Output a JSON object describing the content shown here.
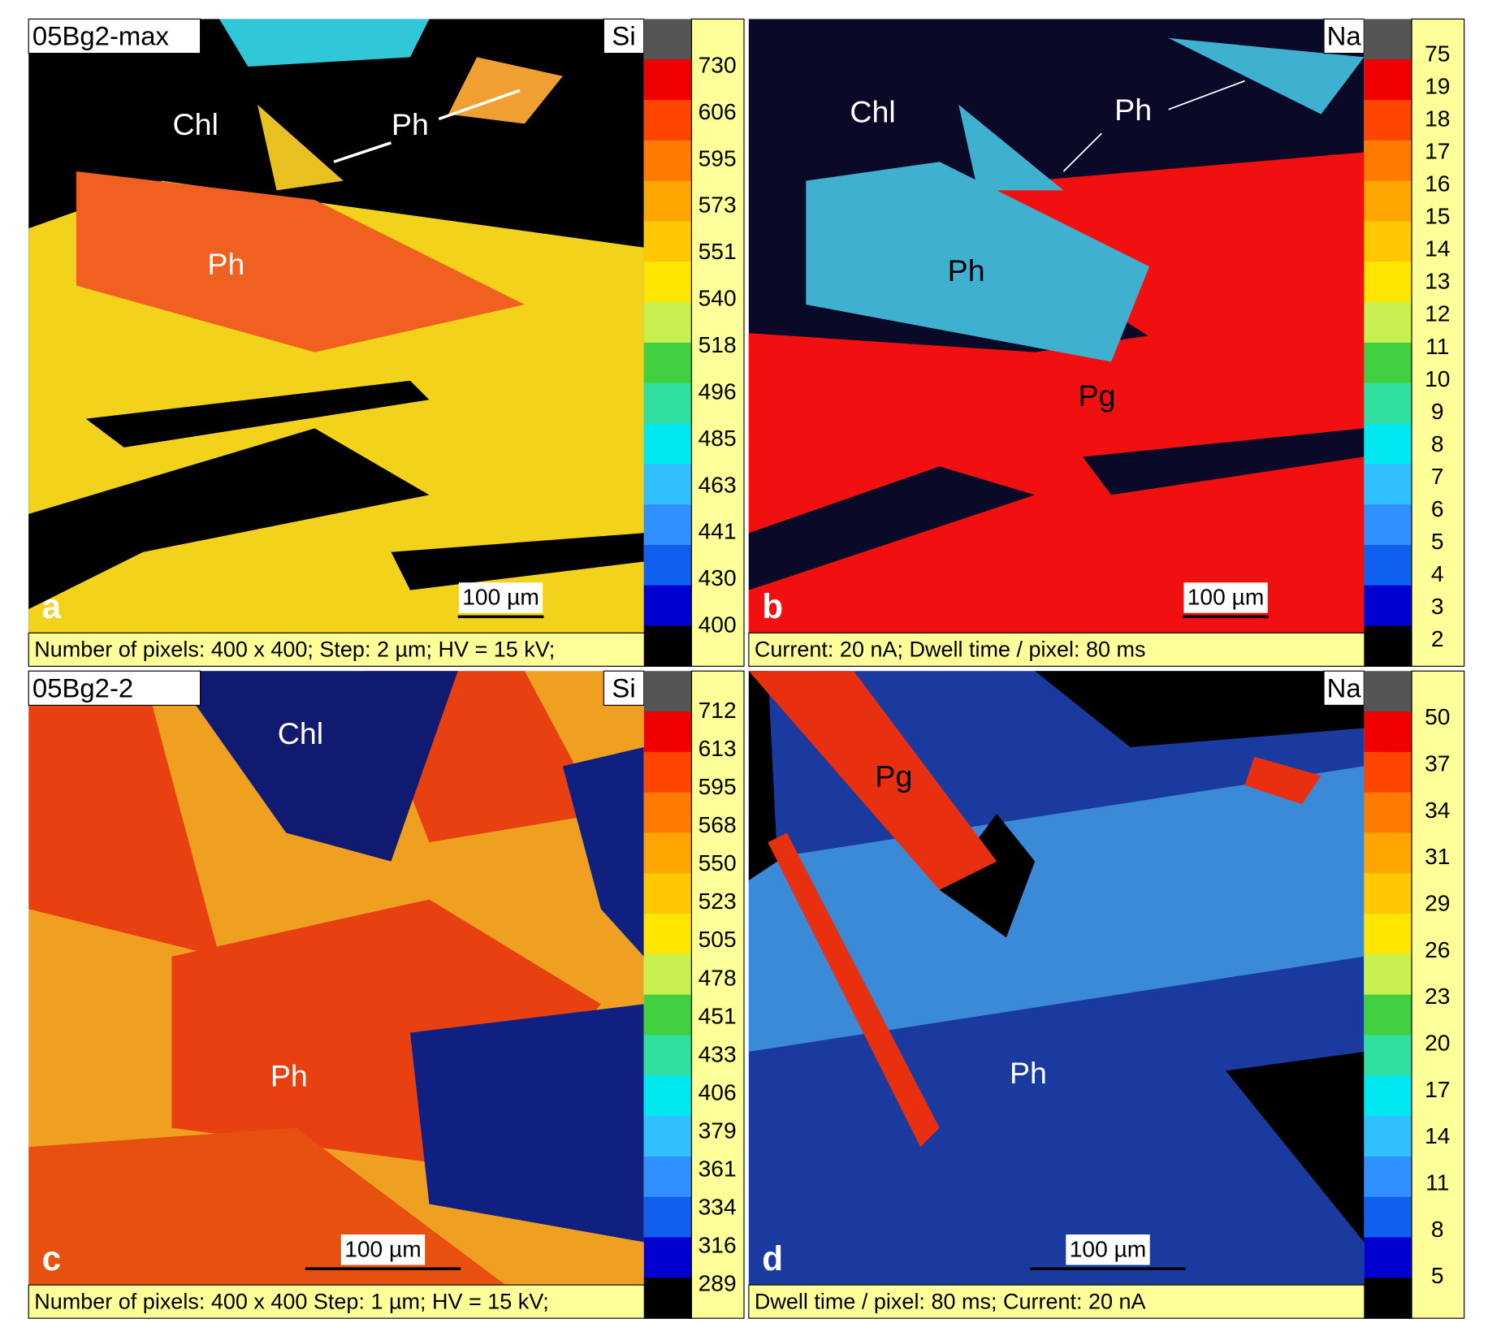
{
  "panels": [
    {
      "letter": "a",
      "sample": "05Bg2-max",
      "element": "Si",
      "scale_bar": "100 µm",
      "caption": "Number of pixels: 400 x 400; Step: 2 µm; HV = 15 kV;",
      "colorbar": [
        "730",
        "606",
        "595",
        "573",
        "551",
        "540",
        "518",
        "496",
        "485",
        "463",
        "441",
        "430",
        "400"
      ],
      "labels": [
        "Chl",
        "Ph",
        "Ph"
      ]
    },
    {
      "letter": "b",
      "element": "Na",
      "scale_bar": "100 µm",
      "caption": "Current: 20 nA; Dwell time / pixel: 80 ms",
      "colorbar": [
        "75",
        "19",
        "18",
        "17",
        "16",
        "15",
        "14",
        "13",
        "12",
        "11",
        "10",
        "9",
        "8",
        "7",
        "6",
        "5",
        "4",
        "3",
        "2"
      ],
      "labels": [
        "Chl",
        "Ph",
        "Ph",
        "Pg"
      ]
    },
    {
      "letter": "c",
      "sample": "05Bg2-2",
      "element": "Si",
      "scale_bar": "100 µm",
      "caption": "Number of pixels: 400 x 400 Step: 1 µm; HV = 15 kV;",
      "colorbar": [
        "712",
        "613",
        "595",
        "568",
        "550",
        "523",
        "505",
        "478",
        "451",
        "433",
        "406",
        "379",
        "361",
        "334",
        "316",
        "289"
      ],
      "labels": [
        "Chl",
        "Ph"
      ]
    },
    {
      "letter": "d",
      "element": "Na",
      "scale_bar": "100 µm",
      "caption": "Dwell time / pixel: 80 ms; Current: 20 nA",
      "colorbar": [
        "50",
        "37",
        "34",
        "31",
        "29",
        "26",
        "23",
        "20",
        "17",
        "14",
        "11",
        "8",
        "5"
      ],
      "labels": [
        "Pg",
        "Ph"
      ]
    }
  ]
}
